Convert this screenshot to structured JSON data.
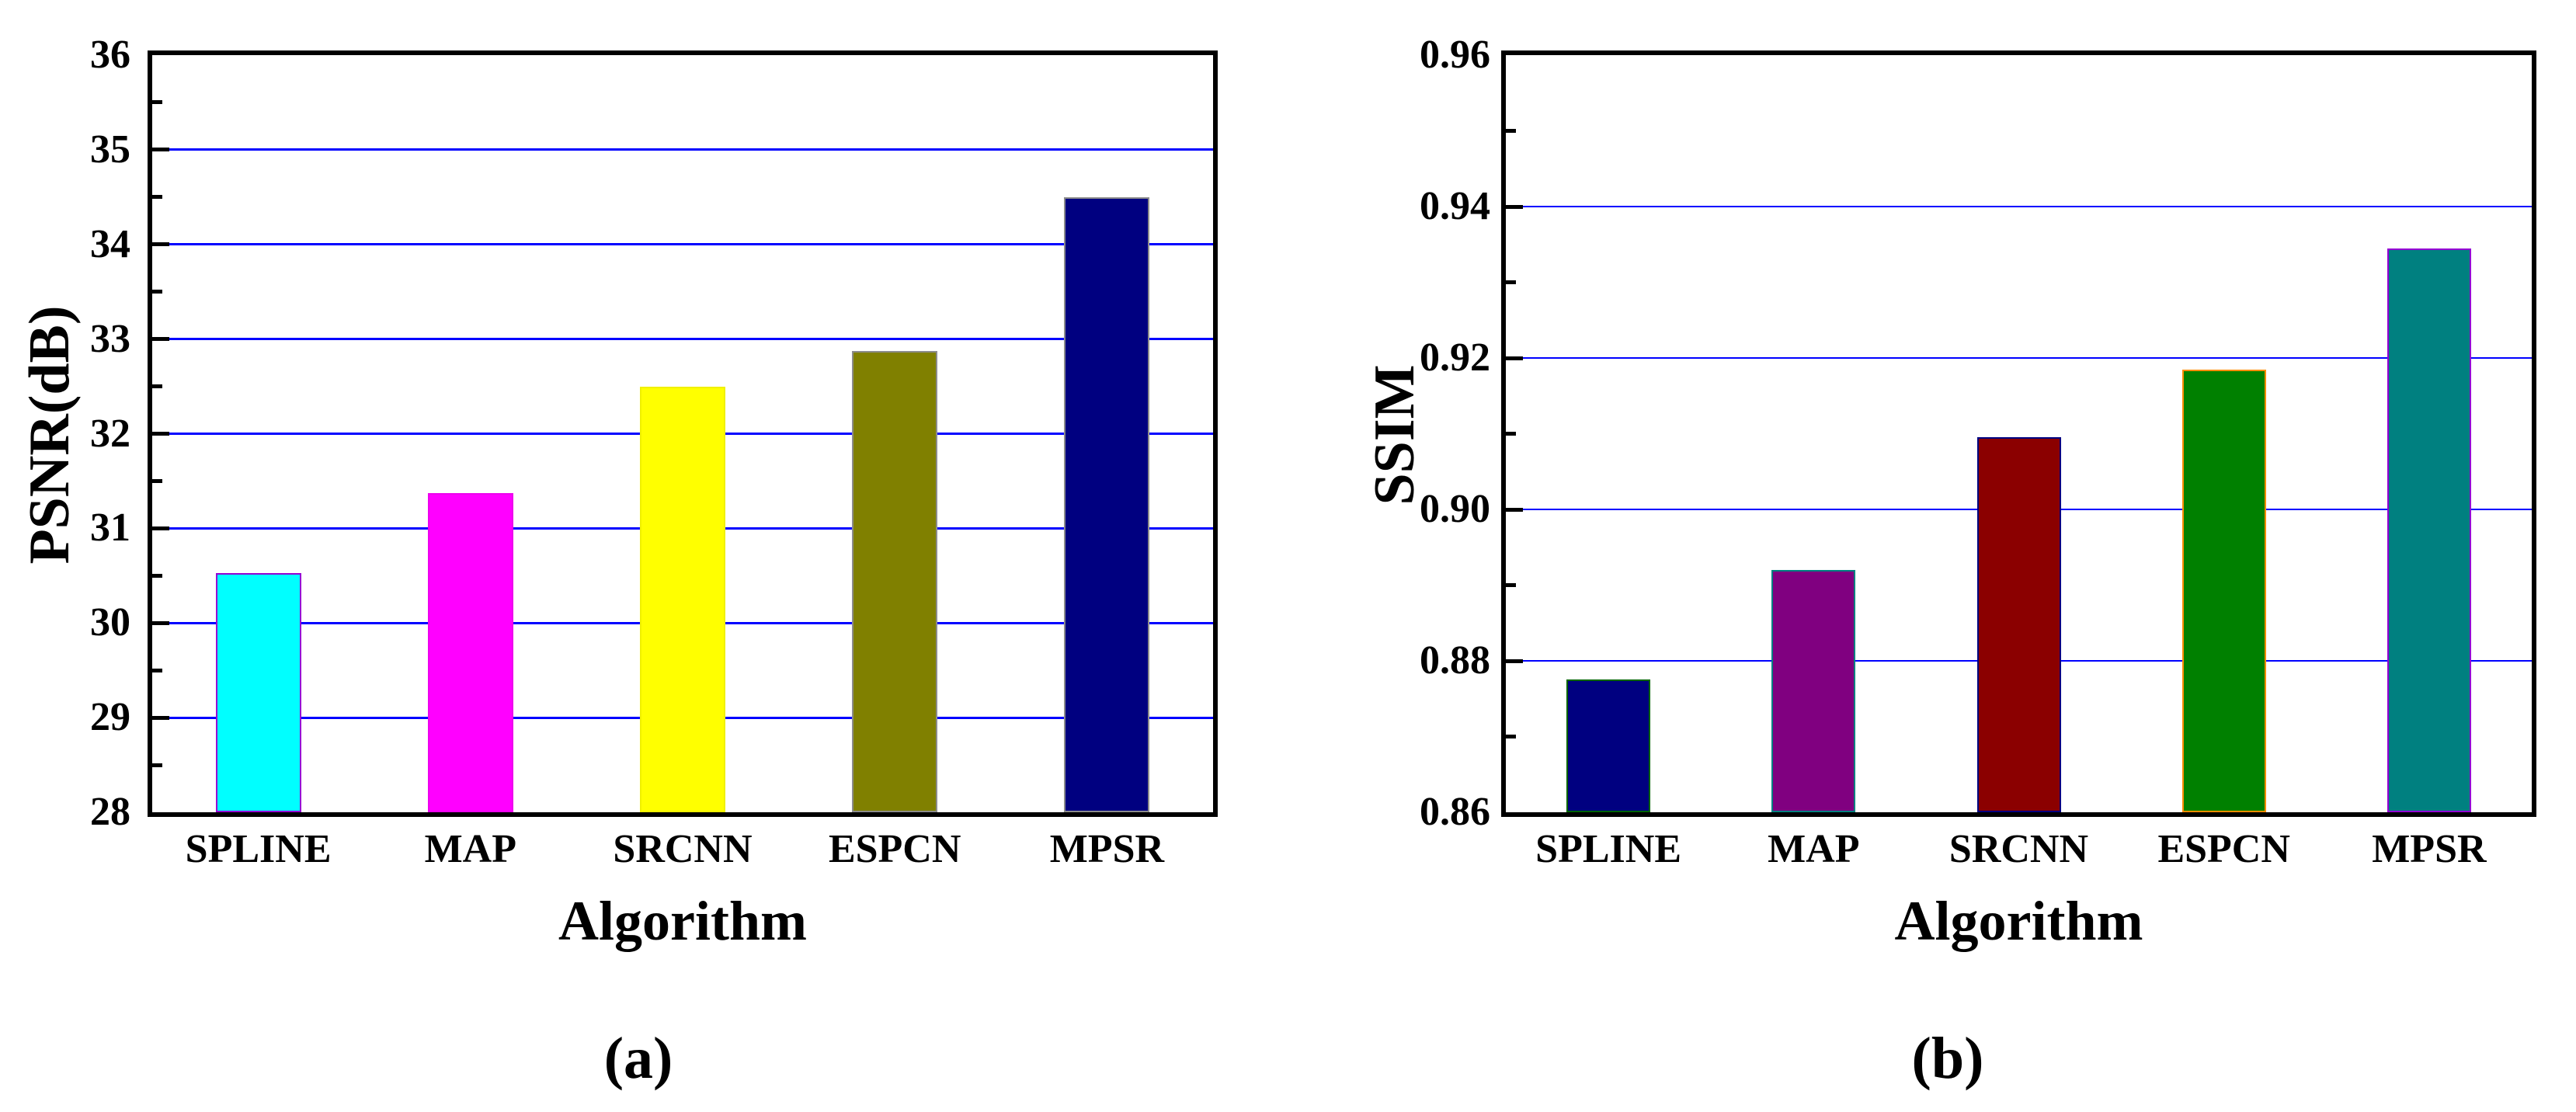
{
  "figure": {
    "captions": {
      "a": "(a)",
      "b": "(b)"
    }
  },
  "chart_data": [
    {
      "id": "psnr-bar-chart",
      "type": "bar",
      "panel_label": "(a)",
      "xlabel": "Algorithm",
      "ylabel": "PSNR(dB)",
      "categories": [
        "SPLINE",
        "MAP",
        "SRCNN",
        "ESPCN",
        "MPSR"
      ],
      "values": [
        30.53,
        31.37,
        32.5,
        32.87,
        34.5
      ],
      "ylim": [
        28,
        36
      ],
      "ytick_values": [
        28,
        29,
        30,
        31,
        32,
        33,
        34,
        35,
        36
      ],
      "ytick_labels": [
        "28",
        "29",
        "30",
        "31",
        "32",
        "33",
        "34",
        "35",
        "36"
      ],
      "minor_tick_values": [
        28.5,
        29.5,
        30.5,
        31.5,
        32.5,
        33.5,
        34.5,
        35.5
      ],
      "grid": true,
      "grid_color": "#0000FF",
      "legend": "none",
      "bar_colors": [
        "#00FFFF",
        "#FF00FF",
        "#FFFF00",
        "#808000",
        "#000080"
      ],
      "bar_edge_colors": [
        "#9400D3",
        "#EE00EE",
        "#F0F000",
        "#8C8C8C",
        "#8C8C8C"
      ]
    },
    {
      "id": "ssim-bar-chart",
      "type": "bar",
      "panel_label": "(b)",
      "xlabel": "Algorithm",
      "ylabel": "SSIM",
      "categories": [
        "SPLINE",
        "MAP",
        "SRCNN",
        "ESPCN",
        "MPSR"
      ],
      "values": [
        0.8775,
        0.892,
        0.9095,
        0.9185,
        0.9345
      ],
      "ylim": [
        0.86,
        0.96
      ],
      "ytick_values": [
        0.86,
        0.88,
        0.9,
        0.92,
        0.94,
        0.96
      ],
      "ytick_labels": [
        "0.86",
        "0.88",
        "0.90",
        "0.92",
        "0.94",
        "0.96"
      ],
      "minor_tick_values": [
        0.87,
        0.89,
        0.91,
        0.93,
        0.95
      ],
      "grid": true,
      "grid_color": "#0000FF",
      "legend": "none",
      "bar_colors": [
        "#000080",
        "#800080",
        "#8B0000",
        "#008000",
        "#008080"
      ],
      "bar_edge_colors": [
        "#006400",
        "#008080",
        "#000080",
        "#FF8C00",
        "#9400D3"
      ]
    }
  ]
}
